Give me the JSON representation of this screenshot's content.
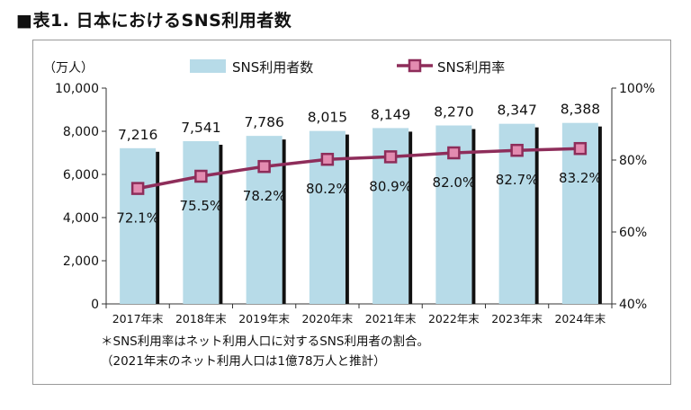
{
  "title": "■表1. 日本におけるSNS利用者数",
  "chart_data": {
    "type": "bar",
    "categories": [
      "2017年末",
      "2018年末",
      "2019年末",
      "2020年末",
      "2021年末",
      "2022年末",
      "2023年末",
      "2024年末"
    ],
    "series": [
      {
        "name": "SNS利用者数",
        "type": "bar",
        "axis": "left",
        "values": [
          7216,
          7541,
          7786,
          8015,
          8149,
          8270,
          8347,
          8388
        ],
        "labels": [
          "7,216",
          "7,541",
          "7,786",
          "8,015",
          "8,149",
          "8,270",
          "8,347",
          "8,388"
        ],
        "color": "#b7dbe8"
      },
      {
        "name": "SNS利用率",
        "type": "line",
        "axis": "right",
        "values": [
          72.1,
          75.5,
          78.2,
          80.2,
          80.9,
          82.0,
          82.7,
          83.2
        ],
        "labels": [
          "72.1%",
          "75.5%",
          "78.2%",
          "80.2%",
          "80.9%",
          "82.0%",
          "82.7%",
          "83.2%"
        ],
        "color": "#8e2d5a"
      }
    ],
    "y_left": {
      "unit_label": "（万人）",
      "min": 0,
      "max": 10000,
      "ticks": [
        0,
        2000,
        4000,
        6000,
        8000,
        10000
      ],
      "tick_labels": [
        "0",
        "2,000",
        "4,000",
        "6,000",
        "8,000",
        "10,000"
      ]
    },
    "y_right": {
      "min": 40,
      "max": 100,
      "ticks": [
        40,
        60,
        80,
        100
      ],
      "tick_labels": [
        "40%",
        "60%",
        "80%",
        "100%"
      ]
    },
    "legend_position": "top",
    "grid": false
  },
  "notes": [
    "＊SNS利用率はネット利用人口に対するSNS利用者の割合。",
    "（2021年末のネット利用人口は1億78万人と推計）"
  ]
}
